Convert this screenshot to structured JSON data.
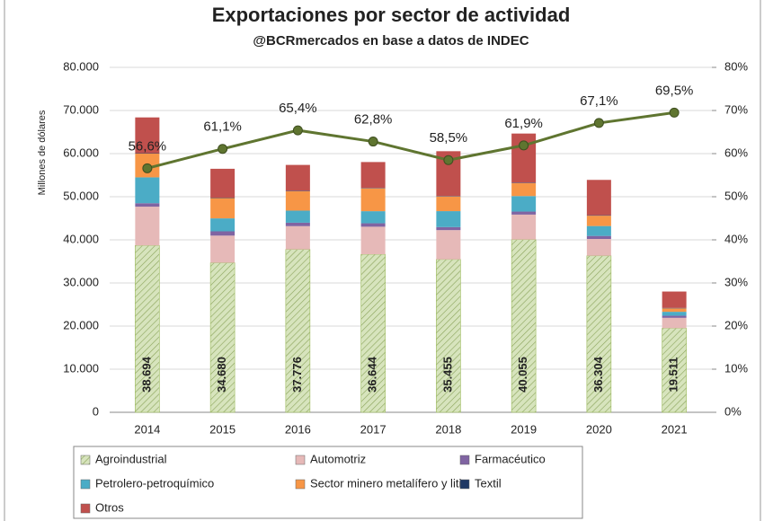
{
  "chart_data": {
    "type": "bar",
    "stacked": true,
    "title": "Exportaciones por sector de actividad",
    "subtitle": "@BCRmercados en base a datos de INDEC",
    "y_label": "Millones de dólares",
    "categories": [
      "2014",
      "2015",
      "2016",
      "2017",
      "2018",
      "2019",
      "2020",
      "2021"
    ],
    "ylim": [
      0,
      80000
    ],
    "yticks": [
      {
        "value": 0,
        "label": "0"
      },
      {
        "value": 10000,
        "label": "10.000"
      },
      {
        "value": 20000,
        "label": "20.000"
      },
      {
        "value": 30000,
        "label": "30.000"
      },
      {
        "value": 40000,
        "label": "40.000"
      },
      {
        "value": 50000,
        "label": "50.000"
      },
      {
        "value": 60000,
        "label": "60.000"
      },
      {
        "value": 70000,
        "label": "70.000"
      },
      {
        "value": 80000,
        "label": "80.000"
      }
    ],
    "y2lim": [
      0,
      80
    ],
    "y2ticks": [
      {
        "value": 0,
        "label": "0%"
      },
      {
        "value": 10,
        "label": "10%"
      },
      {
        "value": 20,
        "label": "20%"
      },
      {
        "value": 30,
        "label": "30%"
      },
      {
        "value": 40,
        "label": "40%"
      },
      {
        "value": 50,
        "label": "50%"
      },
      {
        "value": 60,
        "label": "60%"
      },
      {
        "value": 70,
        "label": "70%"
      },
      {
        "value": 80,
        "label": "80%"
      }
    ],
    "series": [
      {
        "name": "Agroindustrial",
        "color": "#d7e4bd",
        "hatched": true,
        "values": [
          38694,
          34680,
          37776,
          36644,
          35455,
          40055,
          36304,
          19511
        ],
        "value_labels": [
          "38.694",
          "34.680",
          "37.776",
          "36.644",
          "35.455",
          "40.055",
          "36.304",
          "19.511"
        ]
      },
      {
        "name": "Automotriz",
        "color": "#e6b9b8",
        "values": [
          9000,
          6300,
          5400,
          6400,
          6800,
          5800,
          3900,
          2400
        ]
      },
      {
        "name": "Farmacéutico",
        "color": "#8064a2",
        "values": [
          800,
          1000,
          800,
          800,
          700,
          700,
          700,
          500
        ]
      },
      {
        "name": "Petrolero-petroquímico",
        "color": "#4bacc6",
        "values": [
          6000,
          3000,
          2800,
          2800,
          3700,
          3600,
          2300,
          900
        ]
      },
      {
        "name": "Sector minero metalífero y litio",
        "color": "#f79646",
        "values": [
          5500,
          4700,
          4500,
          5300,
          3400,
          3000,
          2400,
          800
        ]
      },
      {
        "name": "Textil",
        "color": "#1f3864",
        "values": [
          100,
          100,
          100,
          100,
          100,
          100,
          100,
          100
        ]
      },
      {
        "name": "Otros",
        "color": "#c0504d",
        "values": [
          8300,
          6700,
          6000,
          6000,
          10400,
          11400,
          8200,
          3800
        ]
      },
      {
        "name": null,
        "type": "line",
        "axis": "y2",
        "color": "#5f7530",
        "values": [
          56.6,
          61.1,
          65.4,
          62.8,
          58.5,
          61.9,
          67.1,
          69.5
        ],
        "value_labels": [
          "56,6%",
          "61,1%",
          "65,4%",
          "62,8%",
          "58,5%",
          "61,9%",
          "67,1%",
          "69,5%"
        ]
      }
    ]
  }
}
